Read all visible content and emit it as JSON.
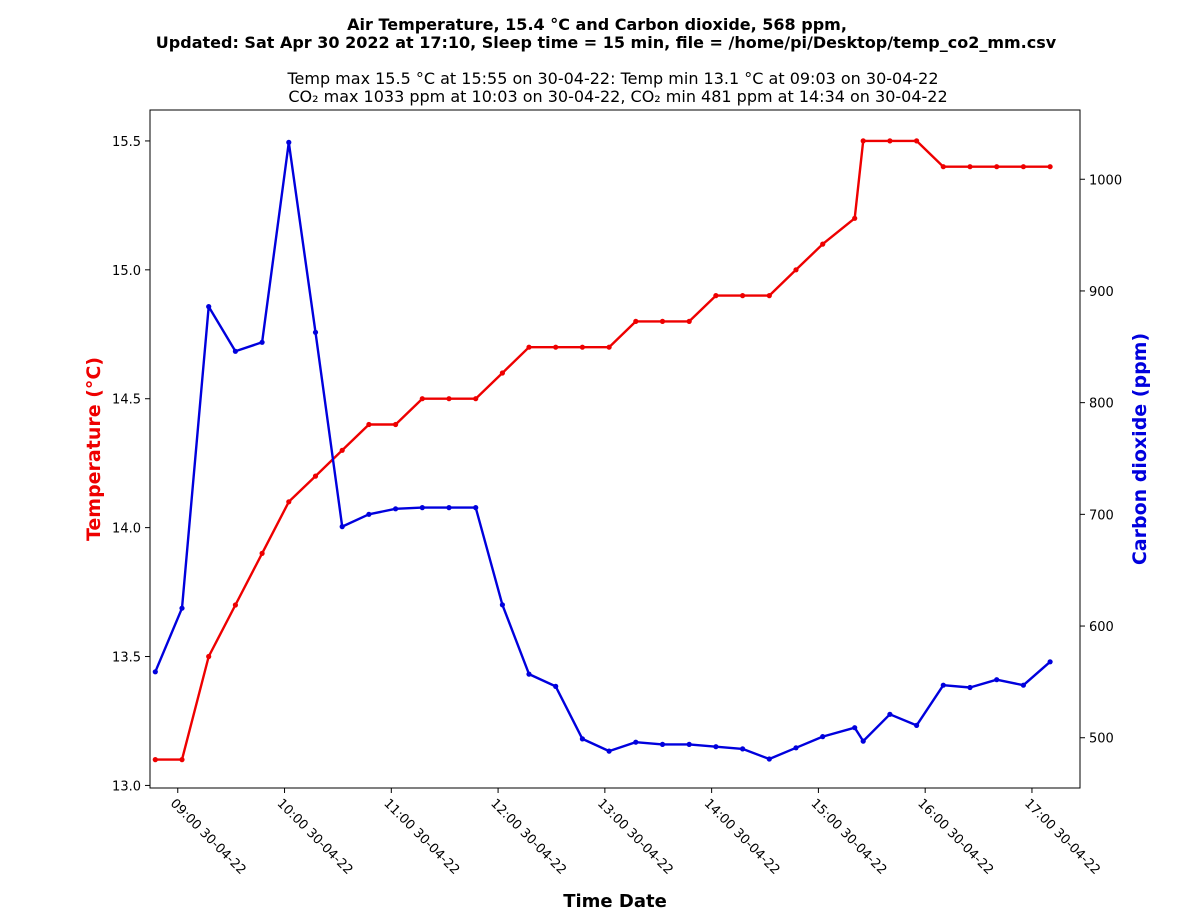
{
  "chart_data": {
    "type": "line",
    "title": {
      "line1": "Air Temperature, 15.4 °C and Carbon dioxide, 568 ppm,",
      "line2": "Updated: Sat Apr 30 2022 at 17:10, Sleep time = 15 min, file = /home/pi/Desktop/temp_co2_mm.csv"
    },
    "subtitle": {
      "line1": "Temp max 15.5 °C at 15:55 on 30-04-22: Temp min 13.1 °C at 09:03 on 30-04-22",
      "line2": "CO₂ max 1033 ppm at 10:03 on 30-04-22, CO₂ min 481 ppm at 14:34 on 30-04-22"
    },
    "xlabel": "Time  Date",
    "ylabel_left": "Temperature (°C)",
    "ylabel_right": "Carbon dioxide (ppm)",
    "colors": {
      "temperature": "#ee0000",
      "co2": "#0000dd"
    },
    "xlim": [
      8.74,
      17.45
    ],
    "ylim_left": [
      12.99,
      15.62
    ],
    "ylim_right": [
      455,
      1062
    ],
    "xticks": [
      {
        "x": 9,
        "label": "09:00  30-04-22"
      },
      {
        "x": 10,
        "label": "10:00  30-04-22"
      },
      {
        "x": 11,
        "label": "11:00  30-04-22"
      },
      {
        "x": 12,
        "label": "12:00  30-04-22"
      },
      {
        "x": 13,
        "label": "13:00  30-04-22"
      },
      {
        "x": 14,
        "label": "14:00  30-04-22"
      },
      {
        "x": 15,
        "label": "15:00  30-04-22"
      },
      {
        "x": 16,
        "label": "16:00  30-04-22"
      },
      {
        "x": 17,
        "label": "17:00  30-04-22"
      }
    ],
    "yticks_left": [
      {
        "v": 13.0,
        "label": "13.0"
      },
      {
        "v": 13.5,
        "label": "13.5"
      },
      {
        "v": 14.0,
        "label": "14.0"
      },
      {
        "v": 14.5,
        "label": "14.5"
      },
      {
        "v": 15.0,
        "label": "15.0"
      },
      {
        "v": 15.5,
        "label": "15.5"
      }
    ],
    "yticks_right": [
      {
        "v": 500,
        "label": "500"
      },
      {
        "v": 600,
        "label": "600"
      },
      {
        "v": 700,
        "label": "700"
      },
      {
        "v": 800,
        "label": "800"
      },
      {
        "v": 900,
        "label": "900"
      },
      {
        "v": 1000,
        "label": "1000"
      }
    ],
    "series": [
      {
        "key": "temperature",
        "axis": "left",
        "points": [
          [
            8.79,
            13.1
          ],
          [
            9.04,
            13.1
          ],
          [
            9.29,
            13.5
          ],
          [
            9.54,
            13.7
          ],
          [
            9.79,
            13.9
          ],
          [
            10.04,
            14.1
          ],
          [
            10.29,
            14.2
          ],
          [
            10.54,
            14.3
          ],
          [
            10.79,
            14.4
          ],
          [
            11.04,
            14.4
          ],
          [
            11.29,
            14.5
          ],
          [
            11.54,
            14.5
          ],
          [
            11.79,
            14.5
          ],
          [
            12.04,
            14.6
          ],
          [
            12.29,
            14.7
          ],
          [
            12.54,
            14.7
          ],
          [
            12.79,
            14.7
          ],
          [
            13.04,
            14.7
          ],
          [
            13.29,
            14.8
          ],
          [
            13.54,
            14.8
          ],
          [
            13.79,
            14.8
          ],
          [
            14.04,
            14.9
          ],
          [
            14.29,
            14.9
          ],
          [
            14.54,
            14.9
          ],
          [
            14.79,
            15.0
          ],
          [
            15.04,
            15.1
          ],
          [
            15.34,
            15.2
          ],
          [
            15.42,
            15.5
          ],
          [
            15.67,
            15.5
          ],
          [
            15.92,
            15.5
          ],
          [
            16.17,
            15.4
          ],
          [
            16.42,
            15.4
          ],
          [
            16.67,
            15.4
          ],
          [
            16.92,
            15.4
          ],
          [
            17.17,
            15.4
          ]
        ]
      },
      {
        "key": "co2",
        "axis": "right",
        "points": [
          [
            8.79,
            559
          ],
          [
            9.04,
            616
          ],
          [
            9.29,
            886
          ],
          [
            9.54,
            846
          ],
          [
            9.79,
            854
          ],
          [
            10.04,
            1033
          ],
          [
            10.29,
            863
          ],
          [
            10.54,
            689
          ],
          [
            10.79,
            700
          ],
          [
            11.04,
            705
          ],
          [
            11.29,
            706
          ],
          [
            11.54,
            706
          ],
          [
            11.79,
            706
          ],
          [
            12.04,
            619
          ],
          [
            12.29,
            557
          ],
          [
            12.54,
            546
          ],
          [
            12.79,
            499
          ],
          [
            13.04,
            488
          ],
          [
            13.29,
            496
          ],
          [
            13.54,
            494
          ],
          [
            13.79,
            494
          ],
          [
            14.04,
            492
          ],
          [
            14.29,
            490
          ],
          [
            14.54,
            481
          ],
          [
            14.79,
            491
          ],
          [
            15.04,
            501
          ],
          [
            15.34,
            509
          ],
          [
            15.42,
            497
          ],
          [
            15.67,
            521
          ],
          [
            15.92,
            511
          ],
          [
            16.17,
            547
          ],
          [
            16.42,
            545
          ],
          [
            16.67,
            552
          ],
          [
            16.92,
            547
          ],
          [
            17.17,
            568
          ]
        ]
      }
    ]
  }
}
